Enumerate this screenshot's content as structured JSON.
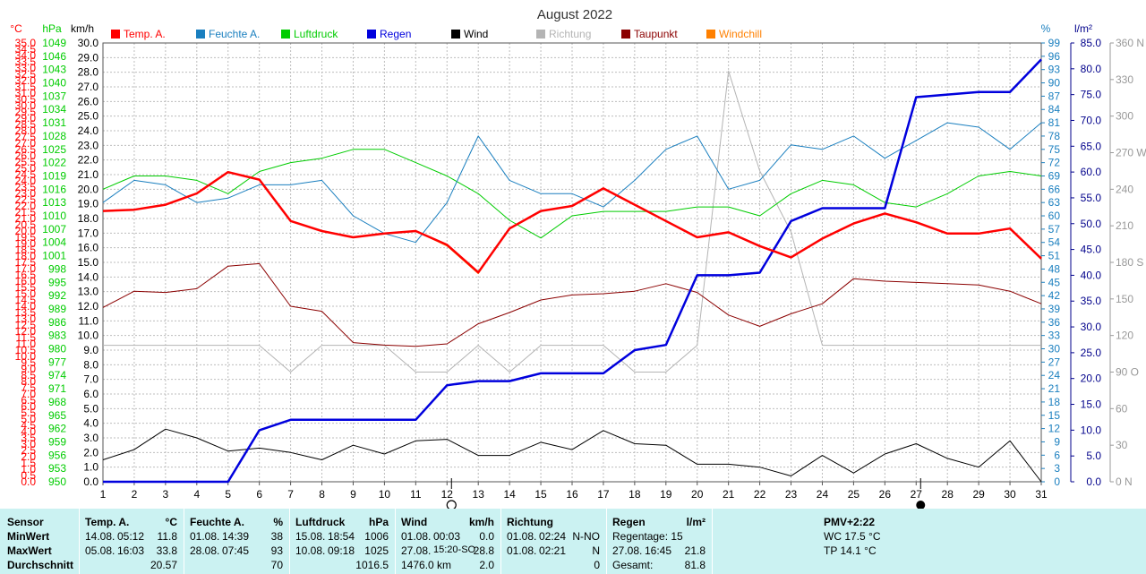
{
  "chart_data": {
    "type": "line",
    "title": "August 2022",
    "x": [
      1,
      2,
      3,
      4,
      5,
      6,
      7,
      8,
      9,
      10,
      11,
      12,
      13,
      14,
      15,
      16,
      17,
      18,
      19,
      20,
      21,
      22,
      23,
      24,
      25,
      26,
      27,
      28,
      29,
      30,
      31
    ],
    "x_range": [
      1,
      31
    ],
    "grid": true,
    "legend_placement": "top",
    "axes": {
      "temp": {
        "unit": "°C",
        "color": "#ff0000",
        "range": [
          0,
          35
        ],
        "step": 0.5
      },
      "pressure": {
        "unit": "hPa",
        "color": "#00cc00",
        "range": [
          950,
          1049
        ],
        "step": 3
      },
      "wind": {
        "unit": "km/h",
        "color": "#000000",
        "range": [
          0,
          30
        ],
        "step": 1
      },
      "humidity": {
        "unit": "%",
        "color": "#1a7fbf",
        "range": [
          0,
          99
        ],
        "step": 3
      },
      "rain": {
        "unit": "l/m²",
        "color": "#00008b",
        "range": [
          0,
          85
        ],
        "step": 5
      },
      "direction": {
        "unit": "",
        "color": "#999999",
        "range": [
          0,
          360
        ],
        "step": 30,
        "named": {
          "90": "90 O",
          "180": "180 S",
          "270": "270 W",
          "360": "360 N",
          "0": "0 N"
        }
      }
    },
    "series": [
      {
        "name": "Temp. A.",
        "axis": "temp",
        "color": "#ff0000",
        "width": 2.5,
        "values": [
          21.6,
          21.7,
          22.1,
          23.0,
          24.7,
          24.1,
          20.8,
          20.0,
          19.5,
          19.8,
          20.0,
          18.9,
          16.7,
          20.2,
          21.6,
          22.0,
          23.4,
          22.1,
          20.8,
          19.5,
          19.9,
          18.8,
          17.9,
          19.4,
          20.6,
          21.4,
          20.7,
          19.8,
          19.8,
          20.2,
          17.8
        ]
      },
      {
        "name": "Feuchte A.",
        "axis": "humidity",
        "color": "#1a7fbf",
        "width": 1,
        "values": [
          63,
          68,
          67,
          63,
          64,
          67,
          67,
          68,
          60,
          56,
          54,
          63,
          78,
          68,
          65,
          65,
          62,
          68,
          75,
          78,
          66,
          68,
          76,
          75,
          78,
          73,
          77,
          81,
          80,
          75,
          81
        ]
      },
      {
        "name": "Luftdruck",
        "axis": "pressure",
        "color": "#00cc00",
        "width": 1,
        "values": [
          1016,
          1019,
          1019,
          1018,
          1015,
          1020,
          1022,
          1023,
          1025,
          1025,
          1022,
          1019,
          1015,
          1009,
          1005,
          1010,
          1011,
          1011,
          1011,
          1012,
          1012,
          1010,
          1015,
          1018,
          1017,
          1013,
          1012,
          1015,
          1019,
          1020,
          1019
        ]
      },
      {
        "name": "Regen",
        "axis": "rain",
        "color": "#0000dd",
        "width": 2.5,
        "values": [
          0,
          0,
          0,
          0,
          0,
          10,
          12,
          12,
          12,
          12,
          12,
          18.7,
          19.5,
          19.5,
          21,
          21,
          21,
          25.5,
          26.5,
          40,
          40,
          40.5,
          50.5,
          53,
          53,
          53,
          74.5,
          75,
          75.5,
          75.5,
          81.8
        ]
      },
      {
        "name": "Wind",
        "axis": "wind",
        "color": "#000000",
        "width": 1,
        "values": [
          1.5,
          2.2,
          3.6,
          3.0,
          2.1,
          2.3,
          2.0,
          1.5,
          2.5,
          1.9,
          2.8,
          2.9,
          1.8,
          1.8,
          2.7,
          2.2,
          3.5,
          2.6,
          2.5,
          1.2,
          1.2,
          1.0,
          0.4,
          1.8,
          0.6,
          1.9,
          2.6,
          1.6,
          1.0,
          2.8,
          0.0
        ]
      },
      {
        "name": "Richtung",
        "axis": "direction",
        "color": "#b4b4b4",
        "width": 1,
        "values": [
          112,
          112,
          112,
          112,
          112,
          112,
          90,
          112,
          112,
          112,
          90,
          90,
          112,
          90,
          112,
          112,
          112,
          90,
          90,
          112,
          337,
          255,
          205,
          112,
          112,
          112,
          112,
          112,
          112,
          112,
          112
        ]
      },
      {
        "name": "Taupunkt",
        "axis": "temp",
        "color": "#8b0000",
        "width": 1,
        "values": [
          13.9,
          15.2,
          15.1,
          15.4,
          17.2,
          17.4,
          14.0,
          13.6,
          11.1,
          10.9,
          10.8,
          11.0,
          12.6,
          13.5,
          14.5,
          14.9,
          15.0,
          15.2,
          15.8,
          15.1,
          13.3,
          12.4,
          13.4,
          14.2,
          16.2,
          16.0,
          15.9,
          15.8,
          15.7,
          15.2,
          14.2
        ]
      },
      {
        "name": "Windchill",
        "axis": "temp",
        "color": "#ff8000",
        "width": 1,
        "values": [
          21.6,
          21.7,
          22.1,
          23.0,
          24.7,
          24.1,
          20.8,
          20.0,
          19.5,
          19.8,
          20.0,
          18.8,
          16.6,
          20.2,
          21.6,
          22.0,
          23.4,
          22.1,
          20.8,
          19.5,
          19.9,
          18.8,
          17.9,
          19.4,
          20.6,
          21.4,
          20.7,
          19.8,
          19.8,
          20.2,
          17.8
        ]
      }
    ],
    "moon_markers": [
      {
        "day": 12,
        "phase": "full"
      },
      {
        "day": 27,
        "phase": "new"
      }
    ]
  },
  "footer": {
    "sensor": {
      "title": "Sensor",
      "rows": [
        "MinWert",
        "MaxWert",
        "Durchschnitt"
      ]
    },
    "temp": {
      "title": "Temp. A.",
      "unit": "°C",
      "min_date": "14.08.",
      "min_time": "05:12",
      "min_val": "11.8",
      "max_date": "05.08.",
      "max_time": "16:03",
      "max_val": "33.8",
      "avg": "20.57"
    },
    "humidity": {
      "title": "Feuchte A.",
      "unit": "%",
      "min_date": "01.08.",
      "min_time": "14:39",
      "min_val": "38",
      "max_date": "28.08.",
      "max_time": "07:45",
      "max_val": "93",
      "avg": "70"
    },
    "pressure": {
      "title": "Luftdruck",
      "unit": "hPa",
      "min_date": "15.08.",
      "min_time": "18:54",
      "min_val": "1006",
      "max_date": "10.08.",
      "max_time": "09:18",
      "max_val": "1025",
      "avg": "1016.5"
    },
    "wind": {
      "title": "Wind",
      "unit": "km/h",
      "min_date": "01.08.",
      "min_time": "00:03",
      "min_val": "0.0",
      "max_date": "27.08.",
      "max_time": "15:20-SO",
      "max_val": "28.8",
      "avg_label": "1476.0 km",
      "avg": "2.0"
    },
    "direction": {
      "title": "Richtung",
      "min_date": "01.08.",
      "min_time": "02:24",
      "min_val": "N-NO",
      "max_date": "01.08.",
      "max_time": "02:21",
      "max_val": "N",
      "avg": "0"
    },
    "rain": {
      "title": "Regen",
      "unit": "l/m²",
      "days_label": "Regentage: 15",
      "max_date": "27.08.",
      "max_time": "16:45",
      "max_val": "21.8",
      "total_label": "Gesamt:",
      "total": "81.8"
    },
    "pmv": {
      "title": "PMV+2:22",
      "wc": "WC 17.5 °C",
      "tp": "TP 14.1 °C"
    }
  }
}
